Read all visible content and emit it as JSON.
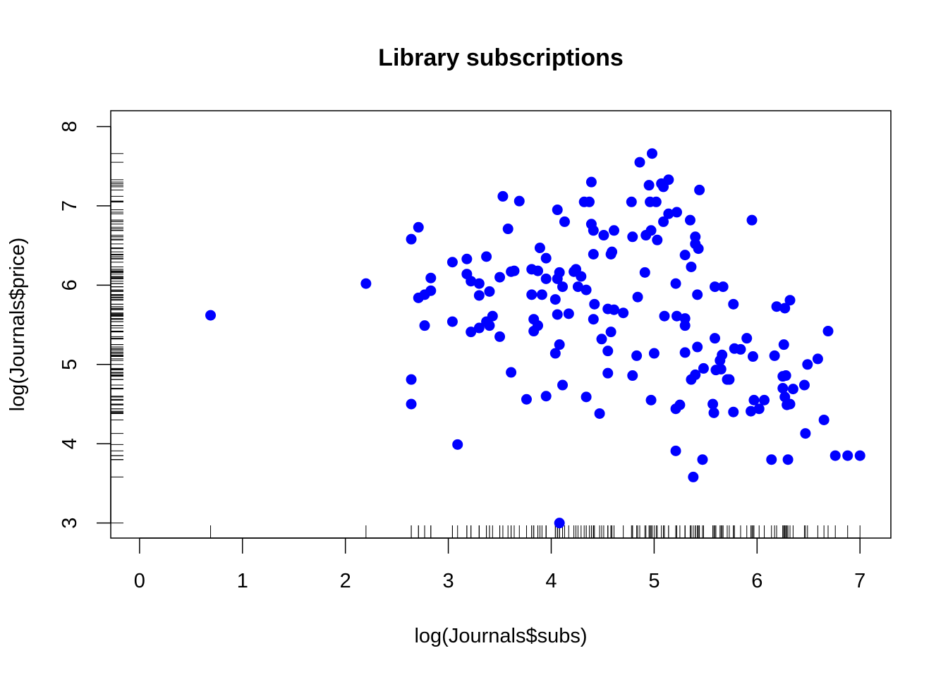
{
  "chart_data": {
    "type": "scatter",
    "title": "Library subscriptions",
    "xlabel": "log(Journals$subs)",
    "ylabel": "log(Journals$price)",
    "xlim": [
      -0.28,
      7.3
    ],
    "ylim": [
      2.81,
      8.2
    ],
    "x_ticks": [
      0,
      1,
      2,
      3,
      4,
      5,
      6,
      7
    ],
    "y_ticks": [
      3,
      4,
      5,
      6,
      7,
      8
    ],
    "marker_color": "#0000ff",
    "rug": true,
    "points": [
      [
        0.69,
        5.62
      ],
      [
        2.2,
        6.02
      ],
      [
        2.64,
        6.58
      ],
      [
        2.64,
        4.81
      ],
      [
        2.64,
        4.5
      ],
      [
        2.71,
        6.73
      ],
      [
        2.71,
        5.84
      ],
      [
        2.77,
        5.88
      ],
      [
        2.77,
        5.49
      ],
      [
        2.83,
        6.09
      ],
      [
        2.83,
        5.93
      ],
      [
        3.04,
        6.29
      ],
      [
        3.04,
        5.54
      ],
      [
        3.09,
        3.99
      ],
      [
        3.18,
        6.33
      ],
      [
        3.18,
        6.14
      ],
      [
        3.22,
        6.05
      ],
      [
        3.22,
        5.41
      ],
      [
        3.3,
        6.02
      ],
      [
        3.3,
        5.87
      ],
      [
        3.3,
        5.46
      ],
      [
        3.37,
        6.36
      ],
      [
        3.37,
        5.54
      ],
      [
        3.4,
        5.92
      ],
      [
        3.4,
        5.49
      ],
      [
        3.43,
        5.61
      ],
      [
        3.5,
        6.1
      ],
      [
        3.5,
        5.35
      ],
      [
        3.53,
        7.12
      ],
      [
        3.58,
        6.71
      ],
      [
        3.61,
        6.17
      ],
      [
        3.61,
        4.9
      ],
      [
        3.64,
        6.18
      ],
      [
        3.69,
        7.06
      ],
      [
        3.76,
        4.56
      ],
      [
        3.81,
        6.2
      ],
      [
        3.81,
        5.88
      ],
      [
        3.83,
        5.57
      ],
      [
        3.83,
        5.42
      ],
      [
        3.87,
        6.18
      ],
      [
        3.87,
        5.49
      ],
      [
        3.89,
        6.47
      ],
      [
        3.91,
        5.88
      ],
      [
        3.95,
        6.34
      ],
      [
        3.95,
        6.08
      ],
      [
        3.95,
        4.6
      ],
      [
        4.04,
        5.82
      ],
      [
        4.04,
        5.14
      ],
      [
        4.06,
        6.95
      ],
      [
        4.06,
        6.08
      ],
      [
        4.06,
        5.63
      ],
      [
        4.08,
        6.16
      ],
      [
        4.08,
        5.25
      ],
      [
        4.08,
        3.0
      ],
      [
        4.11,
        5.98
      ],
      [
        4.11,
        4.74
      ],
      [
        4.13,
        6.8
      ],
      [
        4.17,
        5.64
      ],
      [
        4.22,
        6.17
      ],
      [
        4.24,
        6.2
      ],
      [
        4.26,
        5.98
      ],
      [
        4.29,
        6.11
      ],
      [
        4.32,
        7.05
      ],
      [
        4.34,
        5.94
      ],
      [
        4.34,
        4.59
      ],
      [
        4.37,
        7.05
      ],
      [
        4.39,
        7.3
      ],
      [
        4.39,
        6.77
      ],
      [
        4.41,
        6.69
      ],
      [
        4.41,
        6.39
      ],
      [
        4.41,
        5.57
      ],
      [
        4.42,
        5.76
      ],
      [
        4.47,
        4.38
      ],
      [
        4.49,
        5.32
      ],
      [
        4.51,
        6.63
      ],
      [
        4.55,
        5.7
      ],
      [
        4.55,
        5.17
      ],
      [
        4.55,
        4.89
      ],
      [
        4.58,
        6.39
      ],
      [
        4.58,
        5.41
      ],
      [
        4.59,
        6.42
      ],
      [
        4.61,
        6.69
      ],
      [
        4.61,
        5.69
      ],
      [
        4.7,
        5.65
      ],
      [
        4.78,
        7.05
      ],
      [
        4.79,
        6.61
      ],
      [
        4.79,
        4.86
      ],
      [
        4.83,
        5.11
      ],
      [
        4.84,
        5.85
      ],
      [
        4.86,
        7.55
      ],
      [
        4.91,
        6.16
      ],
      [
        4.92,
        6.63
      ],
      [
        4.95,
        7.26
      ],
      [
        4.96,
        7.05
      ],
      [
        4.97,
        6.69
      ],
      [
        4.97,
        4.55
      ],
      [
        4.98,
        7.66
      ],
      [
        5.0,
        5.14
      ],
      [
        5.02,
        7.05
      ],
      [
        5.03,
        6.57
      ],
      [
        5.07,
        7.28
      ],
      [
        5.09,
        7.24
      ],
      [
        5.09,
        6.8
      ],
      [
        5.1,
        5.61
      ],
      [
        5.14,
        7.33
      ],
      [
        5.14,
        6.9
      ],
      [
        5.21,
        6.02
      ],
      [
        5.21,
        4.44
      ],
      [
        5.21,
        3.91
      ],
      [
        5.22,
        6.92
      ],
      [
        5.22,
        5.61
      ],
      [
        5.25,
        4.49
      ],
      [
        5.3,
        6.38
      ],
      [
        5.3,
        5.58
      ],
      [
        5.3,
        5.49
      ],
      [
        5.3,
        5.15
      ],
      [
        5.35,
        6.82
      ],
      [
        5.36,
        6.23
      ],
      [
        5.36,
        4.81
      ],
      [
        5.38,
        3.58
      ],
      [
        5.4,
        6.61
      ],
      [
        5.4,
        6.52
      ],
      [
        5.4,
        4.87
      ],
      [
        5.42,
        5.22
      ],
      [
        5.42,
        5.88
      ],
      [
        5.43,
        6.46
      ],
      [
        5.44,
        7.2
      ],
      [
        5.47,
        3.8
      ],
      [
        5.48,
        4.95
      ],
      [
        5.57,
        4.5
      ],
      [
        5.58,
        4.39
      ],
      [
        5.59,
        5.98
      ],
      [
        5.59,
        5.33
      ],
      [
        5.6,
        4.93
      ],
      [
        5.64,
        5.05
      ],
      [
        5.65,
        4.94
      ],
      [
        5.66,
        5.12
      ],
      [
        5.67,
        5.98
      ],
      [
        5.71,
        4.81
      ],
      [
        5.73,
        4.81
      ],
      [
        5.77,
        5.76
      ],
      [
        5.77,
        4.4
      ],
      [
        5.78,
        5.2
      ],
      [
        5.84,
        5.19
      ],
      [
        5.9,
        5.33
      ],
      [
        5.94,
        4.41
      ],
      [
        5.95,
        6.82
      ],
      [
        5.96,
        5.1
      ],
      [
        5.97,
        4.55
      ],
      [
        6.02,
        4.44
      ],
      [
        6.07,
        4.55
      ],
      [
        6.14,
        3.8
      ],
      [
        6.17,
        5.11
      ],
      [
        6.19,
        5.73
      ],
      [
        6.25,
        4.85
      ],
      [
        6.25,
        4.7
      ],
      [
        6.26,
        5.25
      ],
      [
        6.27,
        5.71
      ],
      [
        6.27,
        4.59
      ],
      [
        6.28,
        4.86
      ],
      [
        6.29,
        4.49
      ],
      [
        6.3,
        3.8
      ],
      [
        6.32,
        5.81
      ],
      [
        6.32,
        4.5
      ],
      [
        6.35,
        4.69
      ],
      [
        6.46,
        4.74
      ],
      [
        6.47,
        4.13
      ],
      [
        6.49,
        5.0
      ],
      [
        6.59,
        5.07
      ],
      [
        6.65,
        4.3
      ],
      [
        6.69,
        5.42
      ],
      [
        6.76,
        3.85
      ],
      [
        6.88,
        3.85
      ],
      [
        7.0,
        3.85
      ]
    ]
  }
}
